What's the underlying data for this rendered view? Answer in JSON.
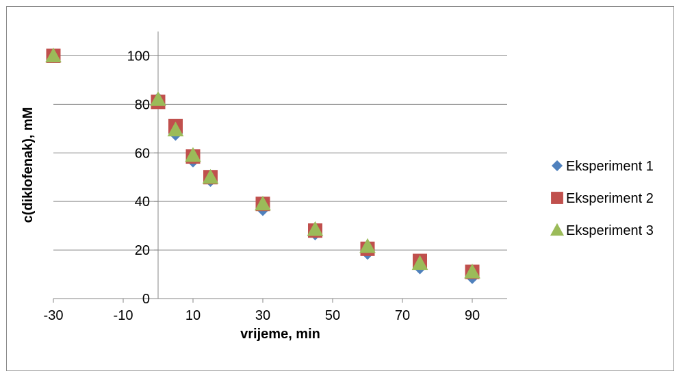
{
  "chart_data": {
    "type": "scatter",
    "title": "",
    "xlabel": "vrijeme, min",
    "ylabel": "c(diklofenak), mM",
    "xlim": [
      -30,
      100
    ],
    "ylim": [
      0,
      110
    ],
    "x_ticks": [
      -30,
      -10,
      10,
      30,
      50,
      70,
      90
    ],
    "y_ticks": [
      0,
      20,
      40,
      60,
      80,
      100
    ],
    "grid": "horizontal",
    "legend_position": "right",
    "series": [
      {
        "name": "Eksperiment 1",
        "marker": "diamond",
        "color": "#4f81bd",
        "x": [
          -30,
          0,
          5,
          10,
          15,
          30,
          45,
          60,
          75,
          90
        ],
        "y": [
          100,
          82,
          68,
          57,
          49,
          37,
          27,
          19,
          13,
          9
        ]
      },
      {
        "name": "Eksperiment 2",
        "marker": "square",
        "color": "#c0504d",
        "x": [
          -30,
          0,
          5,
          10,
          15,
          30,
          45,
          60,
          75,
          90
        ],
        "y": [
          100,
          81,
          71,
          58.5,
          50,
          39,
          28,
          20.5,
          15.5,
          11
        ]
      },
      {
        "name": "Eksperiment 3",
        "marker": "triangle",
        "color": "#9bbb59",
        "x": [
          -30,
          0,
          5,
          10,
          15,
          30,
          45,
          60,
          75,
          90
        ],
        "y": [
          100,
          82,
          69.5,
          59,
          50,
          39,
          28.5,
          21.5,
          14.5,
          11
        ]
      }
    ]
  }
}
